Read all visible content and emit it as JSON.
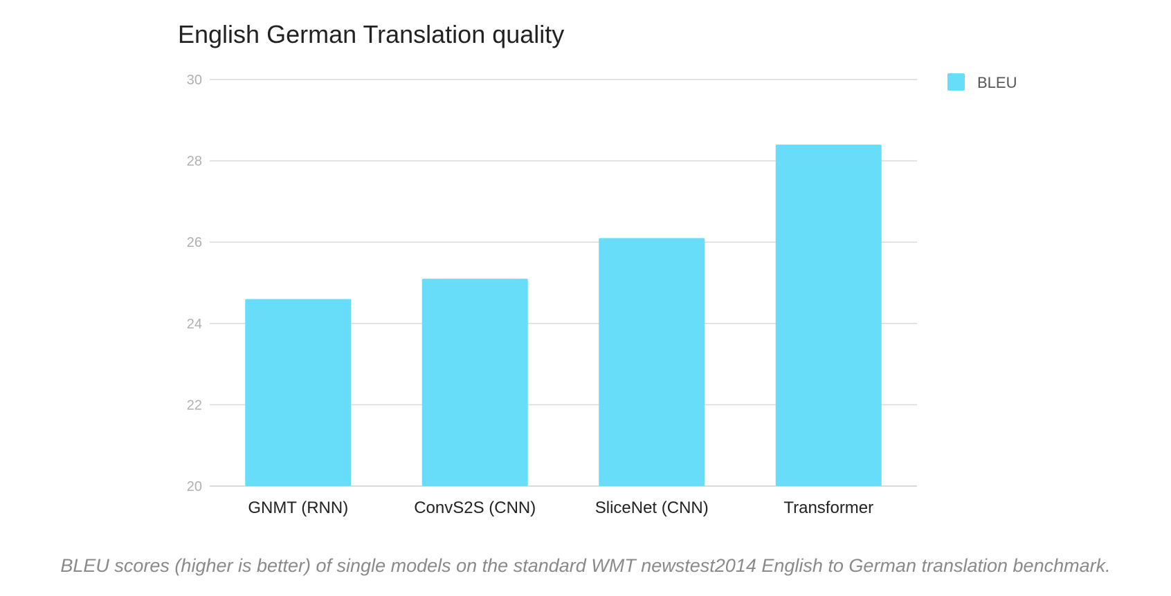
{
  "chart_data": {
    "type": "bar",
    "title": "English German Translation quality",
    "categories": [
      "GNMT (RNN)",
      "ConvS2S (CNN)",
      "SliceNet (CNN)",
      "Transformer"
    ],
    "series": [
      {
        "name": "BLEU",
        "values": [
          24.6,
          25.1,
          26.1,
          28.4
        ]
      }
    ],
    "ylim": [
      20,
      30
    ],
    "yticks": [
      20,
      22,
      24,
      26,
      28,
      30
    ],
    "grid": true,
    "legend_position": "top-right",
    "colors": {
      "bar": "#67ddf9",
      "grid": "#d9d9d9",
      "tick_label": "#b0b0b0",
      "category_label": "#222222",
      "title": "#222222",
      "legend_label": "#555555"
    }
  },
  "caption": "BLEU scores (higher is better) of single models on the standard WMT newstest2014 English to German translation benchmark."
}
